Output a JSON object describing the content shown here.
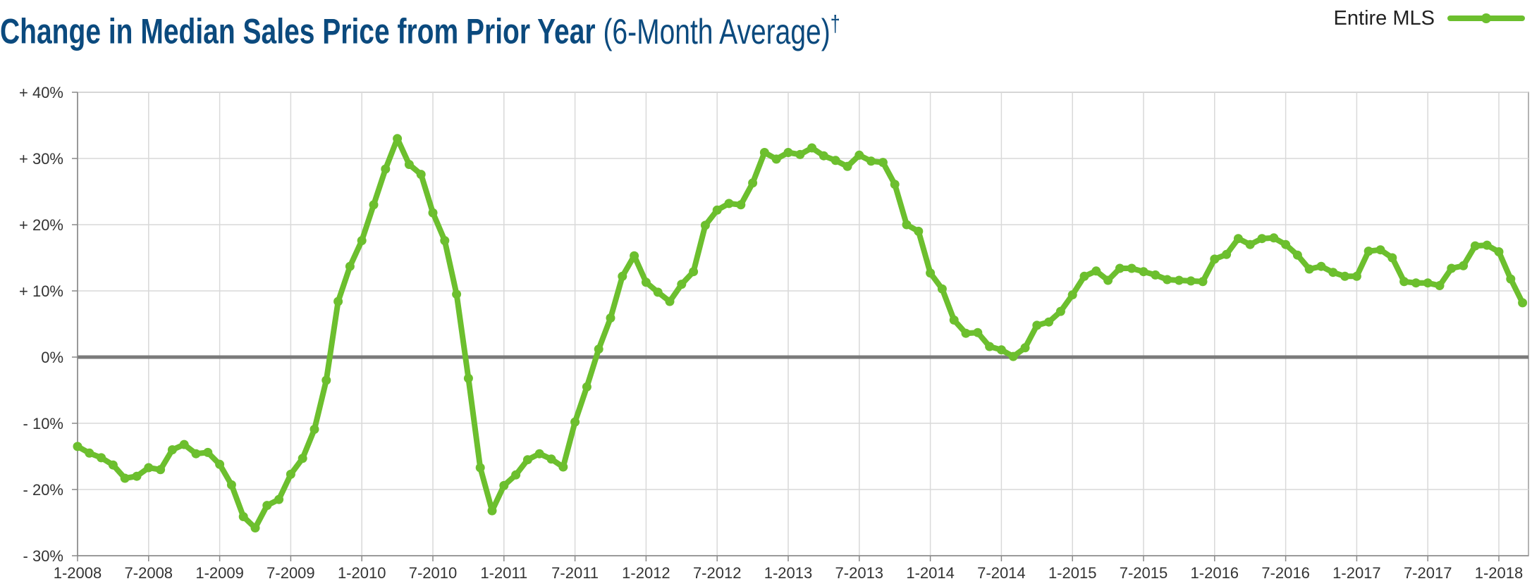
{
  "title": {
    "main": "Change in Median Sales Price from Prior Year",
    "sub": "(6-Month Average)",
    "mark": "†"
  },
  "chart_data": {
    "type": "line",
    "ylim": [
      -30,
      40
    ],
    "y_ticks": [
      40,
      30,
      20,
      10,
      0,
      -10,
      -20,
      -30
    ],
    "y_tick_labels": [
      "+ 40%",
      "+ 30%",
      "+ 20%",
      "+ 10%",
      "0%",
      "- 10%",
      "- 20%",
      "- 30%"
    ],
    "x_tick_labels": [
      "1-2008",
      "7-2008",
      "1-2009",
      "7-2009",
      "1-2010",
      "7-2010",
      "1-2011",
      "7-2011",
      "1-2012",
      "7-2012",
      "1-2013",
      "7-2013",
      "1-2014",
      "7-2014",
      "1-2015",
      "7-2015",
      "1-2016",
      "7-2016",
      "1-2017",
      "7-2017",
      "1-2018"
    ],
    "x_start": "1-2008",
    "x_end": "3-2018",
    "grid": true,
    "legend_position": "top-right",
    "series": [
      {
        "name": "Entire MLS",
        "color": "#6cbf2e",
        "values": [
          -13.5,
          -14.5,
          -15.2,
          -16.3,
          -18.3,
          -18.0,
          -16.7,
          -17.0,
          -14.0,
          -13.2,
          -14.6,
          -14.4,
          -16.2,
          -19.3,
          -24.1,
          -25.8,
          -22.4,
          -21.5,
          -17.7,
          -15.3,
          -10.9,
          -3.5,
          8.4,
          13.7,
          17.6,
          23.0,
          28.4,
          33.0,
          29.1,
          27.6,
          21.8,
          17.6,
          9.5,
          -3.2,
          -16.7,
          -23.2,
          -19.4,
          -17.8,
          -15.5,
          -14.6,
          -15.4,
          -16.6,
          -9.8,
          -4.5,
          1.2,
          5.9,
          12.2,
          15.3,
          11.3,
          9.8,
          8.4,
          11.0,
          12.9,
          19.9,
          22.2,
          23.2,
          23.0,
          26.3,
          30.9,
          29.9,
          30.9,
          30.6,
          31.6,
          30.4,
          29.7,
          28.8,
          30.5,
          29.6,
          29.4,
          26.1,
          20.0,
          19.0,
          12.7,
          10.3,
          5.6,
          3.6,
          3.7,
          1.6,
          1.1,
          0.1,
          1.4,
          4.8,
          5.3,
          6.9,
          9.4,
          12.2,
          13.0,
          11.6,
          13.4,
          13.4,
          12.9,
          12.4,
          11.7,
          11.6,
          11.5,
          11.4,
          14.8,
          15.5,
          17.9,
          17.0,
          17.9,
          18.0,
          17.0,
          15.4,
          13.3,
          13.7,
          12.8,
          12.2,
          12.2,
          16.0,
          16.2,
          15.0,
          11.4,
          11.2,
          11.2,
          10.8,
          13.4,
          13.8,
          16.8,
          16.9,
          15.9,
          11.8,
          8.2
        ]
      }
    ]
  }
}
